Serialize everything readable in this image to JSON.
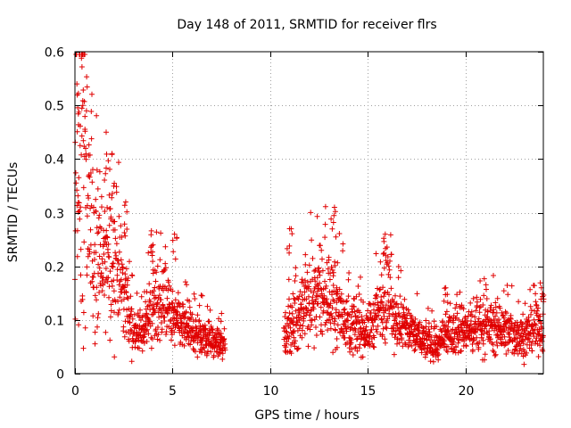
{
  "chart_data": {
    "type": "scatter",
    "title": "Day 148 of 2011, SRMTID for receiver flrs",
    "xlabel": "GPS time / hours",
    "ylabel": "SRMTID / TECUs",
    "xlim": [
      0,
      24
    ],
    "ylim": [
      0,
      0.6
    ],
    "xticks": [
      0,
      5,
      10,
      15,
      20
    ],
    "yticks": [
      0,
      0.1,
      0.2,
      0.3,
      0.4,
      0.5,
      0.6
    ],
    "grid": true,
    "marker": "plus",
    "marker_color": "#e00000",
    "series": [
      {
        "name": "SRMTID",
        "trend": [
          [
            0.0,
            0.4
          ],
          [
            0.25,
            0.44
          ],
          [
            0.5,
            0.33
          ],
          [
            1.0,
            0.24
          ],
          [
            1.5,
            0.2
          ],
          [
            2.0,
            0.21
          ],
          [
            2.5,
            0.16
          ],
          [
            3.0,
            0.08
          ],
          [
            3.4,
            0.07
          ],
          [
            4.0,
            0.13
          ],
          [
            4.5,
            0.14
          ],
          [
            5.0,
            0.1
          ],
          [
            6.0,
            0.08
          ],
          [
            7.0,
            0.06
          ],
          [
            7.7,
            0.05
          ],
          [
            10.7,
            0.07
          ],
          [
            11.5,
            0.11
          ],
          [
            12.3,
            0.15
          ],
          [
            13.0,
            0.14
          ],
          [
            13.6,
            0.12
          ],
          [
            14.0,
            0.09
          ],
          [
            15.0,
            0.08
          ],
          [
            15.5,
            0.11
          ],
          [
            16.0,
            0.14
          ],
          [
            16.5,
            0.1
          ],
          [
            17.5,
            0.07
          ],
          [
            18.5,
            0.05
          ],
          [
            19.2,
            0.07
          ],
          [
            20.0,
            0.08
          ],
          [
            21.0,
            0.09
          ],
          [
            22.0,
            0.08
          ],
          [
            23.0,
            0.07
          ],
          [
            24.0,
            0.09
          ]
        ],
        "peaks": [
          [
            0.1,
            0.54
          ],
          [
            0.4,
            0.5
          ],
          [
            1.6,
            0.45
          ],
          [
            1.9,
            0.41
          ],
          [
            2.6,
            0.32
          ],
          [
            4.0,
            0.24
          ],
          [
            5.1,
            0.26
          ],
          [
            11.0,
            0.27
          ],
          [
            13.3,
            0.31
          ],
          [
            15.9,
            0.26
          ],
          [
            19.0,
            0.16
          ],
          [
            23.9,
            0.16
          ]
        ],
        "gaps": [
          [
            7.7,
            10.7
          ]
        ]
      }
    ]
  }
}
